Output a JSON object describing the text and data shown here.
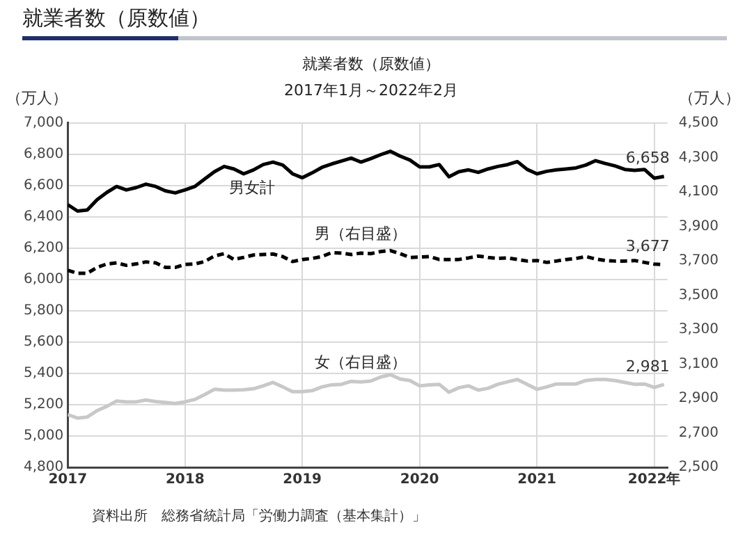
{
  "chart_data": {
    "type": "line",
    "title": "就業者数（原数値）",
    "subtitle": "2017年1月～2022年2月",
    "ylabel": "（万人）",
    "y2label": "（万人）",
    "annotations": [
      "就業者数（原数値）",
      "資料出所　総務省統計局「労働力調査（基本集計）」"
    ],
    "x": [
      "2017-01",
      "2017-02",
      "2017-03",
      "2017-04",
      "2017-05",
      "2017-06",
      "2017-07",
      "2017-08",
      "2017-09",
      "2017-10",
      "2017-11",
      "2017-12",
      "2018-01",
      "2018-02",
      "2018-03",
      "2018-04",
      "2018-05",
      "2018-06",
      "2018-07",
      "2018-08",
      "2018-09",
      "2018-10",
      "2018-11",
      "2018-12",
      "2019-01",
      "2019-02",
      "2019-03",
      "2019-04",
      "2019-05",
      "2019-06",
      "2019-07",
      "2019-08",
      "2019-09",
      "2019-10",
      "2019-11",
      "2019-12",
      "2020-01",
      "2020-02",
      "2020-03",
      "2020-04",
      "2020-05",
      "2020-06",
      "2020-07",
      "2020-08",
      "2020-09",
      "2020-10",
      "2020-11",
      "2020-12",
      "2021-01",
      "2021-02",
      "2021-03",
      "2021-04",
      "2021-05",
      "2021-06",
      "2021-07",
      "2021-08",
      "2021-09",
      "2021-10",
      "2021-11",
      "2021-12",
      "2022-01",
      "2022-02"
    ],
    "series": [
      {
        "name": "男女計",
        "color": "#000000",
        "line_style": "solid",
        "values": [
          6478,
          6437,
          6444,
          6509,
          6556,
          6594,
          6572,
          6587,
          6609,
          6594,
          6566,
          6553,
          6572,
          6594,
          6641,
          6688,
          6722,
          6706,
          6675,
          6700,
          6734,
          6750,
          6731,
          6675,
          6650,
          6681,
          6716,
          6738,
          6756,
          6775,
          6750,
          6772,
          6797,
          6819,
          6788,
          6763,
          6719,
          6719,
          6734,
          6656,
          6688,
          6700,
          6684,
          6706,
          6722,
          6734,
          6753,
          6703,
          6675,
          6691,
          6700,
          6706,
          6713,
          6731,
          6759,
          6741,
          6725,
          6703,
          6697,
          6703,
          6647,
          6658
        ],
        "value_labels": [
          null,
          null,
          null,
          null,
          null,
          null,
          null,
          null,
          null,
          null,
          null,
          null,
          null,
          null,
          null,
          null,
          null,
          null,
          null,
          null,
          null,
          null,
          null,
          null,
          null,
          null,
          null,
          null,
          null,
          null,
          null,
          null,
          null,
          null,
          null,
          null,
          null,
          null,
          null,
          null,
          null,
          null,
          null,
          null,
          null,
          null,
          null,
          null,
          null,
          null,
          null,
          null,
          null,
          null,
          null,
          null,
          null,
          null,
          null,
          null,
          null,
          "6,658"
        ]
      },
      {
        "name": "男（右目盛）",
        "color": "#000000",
        "line_style": "dashed",
        "axis": "y2",
        "values": [
          3644,
          3627,
          3627,
          3661,
          3681,
          3687,
          3673,
          3681,
          3693,
          3687,
          3661,
          3661,
          3678,
          3681,
          3695,
          3727,
          3741,
          3707,
          3719,
          3733,
          3736,
          3739,
          3724,
          3695,
          3707,
          3713,
          3724,
          3747,
          3744,
          3736,
          3744,
          3741,
          3753,
          3759,
          3741,
          3719,
          3721,
          3724,
          3707,
          3707,
          3707,
          3716,
          3727,
          3719,
          3713,
          3716,
          3707,
          3698,
          3701,
          3690,
          3698,
          3707,
          3713,
          3724,
          3710,
          3701,
          3698,
          3698,
          3701,
          3690,
          3680,
          3677
        ],
        "value_labels": [
          null,
          null,
          null,
          null,
          null,
          null,
          null,
          null,
          null,
          null,
          null,
          null,
          null,
          null,
          null,
          null,
          null,
          null,
          null,
          null,
          null,
          null,
          null,
          null,
          null,
          null,
          null,
          null,
          null,
          null,
          null,
          null,
          null,
          null,
          null,
          null,
          null,
          null,
          null,
          null,
          null,
          null,
          null,
          null,
          null,
          null,
          null,
          null,
          null,
          null,
          null,
          null,
          null,
          null,
          null,
          null,
          null,
          null,
          null,
          null,
          null,
          "3,677"
        ]
      },
      {
        "name": "女（右目盛）",
        "color": "#c8c8c8",
        "line_style": "solid",
        "axis": "y2",
        "values": [
          2806,
          2786,
          2792,
          2829,
          2854,
          2885,
          2880,
          2880,
          2891,
          2882,
          2877,
          2871,
          2880,
          2894,
          2922,
          2953,
          2948,
          2948,
          2950,
          2956,
          2973,
          2993,
          2967,
          2939,
          2939,
          2945,
          2967,
          2979,
          2982,
          2999,
          2996,
          3001,
          3024,
          3038,
          3013,
          3004,
          2973,
          2979,
          2982,
          2936,
          2962,
          2973,
          2948,
          2959,
          2982,
          2996,
          3010,
          2982,
          2953,
          2967,
          2984,
          2984,
          2984,
          3004,
          3010,
          3010,
          3004,
          2993,
          2982,
          2984,
          2964,
          2981
        ],
        "value_labels": [
          null,
          null,
          null,
          null,
          null,
          null,
          null,
          null,
          null,
          null,
          null,
          null,
          null,
          null,
          null,
          null,
          null,
          null,
          null,
          null,
          null,
          null,
          null,
          null,
          null,
          null,
          null,
          null,
          null,
          null,
          null,
          null,
          null,
          null,
          null,
          null,
          null,
          null,
          null,
          null,
          null,
          null,
          null,
          null,
          null,
          null,
          null,
          null,
          null,
          null,
          null,
          null,
          null,
          null,
          null,
          null,
          null,
          null,
          null,
          null,
          null,
          "2,981"
        ]
      }
    ],
    "xlim": [
      "2017-01",
      "2022-02"
    ],
    "xticks": [
      "2017",
      "2018",
      "2019",
      "2020",
      "2021",
      {
        "value": "2022",
        "label": "2022年"
      }
    ],
    "ylim": [
      4800,
      7000
    ],
    "yticks": [
      {
        "value": 4800,
        "label": "4,800"
      },
      {
        "value": 5000,
        "label": "5,000"
      },
      {
        "value": 5200,
        "label": "5,200"
      },
      {
        "value": 5400,
        "label": "5,400"
      },
      {
        "value": 5600,
        "label": "5,600"
      },
      {
        "value": 5800,
        "label": "5,800"
      },
      {
        "value": 6000,
        "label": "6,000"
      },
      {
        "value": 6200,
        "label": "6,200"
      },
      {
        "value": 6400,
        "label": "6,400"
      },
      {
        "value": 6600,
        "label": "6,600"
      },
      {
        "value": 6800,
        "label": "6,800"
      },
      {
        "value": 7000,
        "label": "7,000"
      }
    ],
    "y2lim": [
      2500,
      4500
    ],
    "y2ticks": [
      {
        "value": 2500,
        "label": "2,500"
      },
      {
        "value": 2700,
        "label": "2,700"
      },
      {
        "value": 2900,
        "label": "2,900"
      },
      {
        "value": 3100,
        "label": "3,100"
      },
      {
        "value": 3300,
        "label": "3,300"
      },
      {
        "value": 3500,
        "label": "3,500"
      },
      {
        "value": 3700,
        "label": "3,700"
      },
      {
        "value": 3900,
        "label": "3,900"
      },
      {
        "value": 4100,
        "label": "4,100"
      },
      {
        "value": 4300,
        "label": "4,300"
      },
      {
        "value": 4500,
        "label": "4,500"
      }
    ],
    "grid": true,
    "legend": false,
    "marker": "none"
  }
}
